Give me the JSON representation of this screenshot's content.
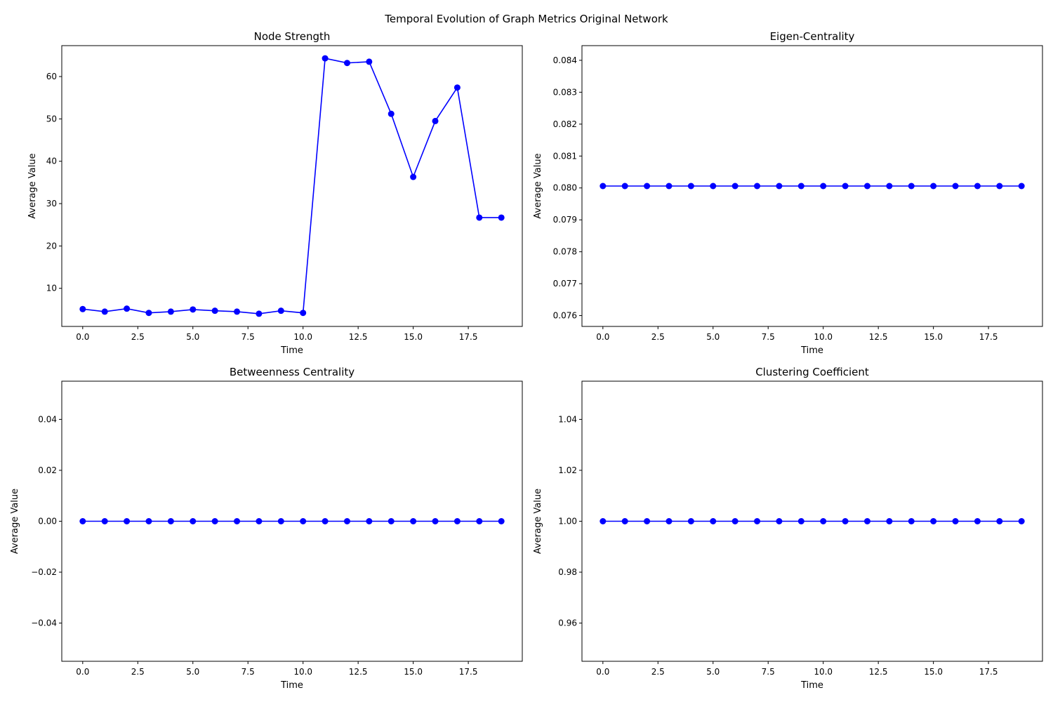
{
  "figure": {
    "title": "Temporal Evolution of Graph Metrics Original Network"
  },
  "chart_data": [
    {
      "type": "line",
      "title": "Node Strength",
      "xlabel": "Time",
      "ylabel": "Average Value",
      "x": [
        0,
        1,
        2,
        3,
        4,
        5,
        6,
        7,
        8,
        9,
        10,
        11,
        12,
        13,
        14,
        15,
        16,
        17,
        18,
        19
      ],
      "series": [
        {
          "values": [
            5.1,
            4.5,
            5.2,
            4.2,
            4.5,
            5.0,
            4.7,
            4.5,
            4.0,
            4.7,
            4.2,
            64.3,
            63.2,
            63.5,
            51.2,
            36.3,
            49.5,
            57.4,
            26.7,
            26.7
          ],
          "color": "#0000ff",
          "marker": "circle"
        }
      ],
      "xlim": [
        -0.95,
        19.95
      ],
      "ylim": [
        1.0,
        67.3
      ],
      "xticks": [
        0.0,
        2.5,
        5.0,
        7.5,
        10.0,
        12.5,
        15.0,
        17.5
      ],
      "xtick_labels": [
        "0.0",
        "2.5",
        "5.0",
        "7.5",
        "10.0",
        "12.5",
        "15.0",
        "17.5"
      ],
      "yticks": [
        10,
        20,
        30,
        40,
        50,
        60
      ],
      "ytick_labels": [
        "10",
        "20",
        "30",
        "40",
        "50",
        "60"
      ],
      "grid": false
    },
    {
      "type": "line",
      "title": "Eigen-Centrality",
      "xlabel": "Time",
      "ylabel": "Average Value",
      "x": [
        0,
        1,
        2,
        3,
        4,
        5,
        6,
        7,
        8,
        9,
        10,
        11,
        12,
        13,
        14,
        15,
        16,
        17,
        18,
        19
      ],
      "series": [
        {
          "values": [
            0.08006,
            0.08006,
            0.08006,
            0.08006,
            0.08006,
            0.08006,
            0.08006,
            0.08006,
            0.08006,
            0.08006,
            0.08006,
            0.08006,
            0.08006,
            0.08006,
            0.08006,
            0.08006,
            0.08006,
            0.08006,
            0.08006,
            0.08006
          ],
          "color": "#0000ff",
          "marker": "circle"
        }
      ],
      "xlim": [
        -0.95,
        19.95
      ],
      "ylim": [
        0.07566,
        0.08446
      ],
      "xticks": [
        0.0,
        2.5,
        5.0,
        7.5,
        10.0,
        12.5,
        15.0,
        17.5
      ],
      "xtick_labels": [
        "0.0",
        "2.5",
        "5.0",
        "7.5",
        "10.0",
        "12.5",
        "15.0",
        "17.5"
      ],
      "yticks": [
        0.076,
        0.077,
        0.078,
        0.079,
        0.08,
        0.081,
        0.082,
        0.083,
        0.084
      ],
      "ytick_labels": [
        "0.076",
        "0.077",
        "0.078",
        "0.079",
        "0.080",
        "0.081",
        "0.082",
        "0.083",
        "0.084"
      ],
      "grid": false
    },
    {
      "type": "line",
      "title": "Betweenness Centrality",
      "xlabel": "Time",
      "ylabel": "Average Value",
      "x": [
        0,
        1,
        2,
        3,
        4,
        5,
        6,
        7,
        8,
        9,
        10,
        11,
        12,
        13,
        14,
        15,
        16,
        17,
        18,
        19
      ],
      "series": [
        {
          "values": [
            0,
            0,
            0,
            0,
            0,
            0,
            0,
            0,
            0,
            0,
            0,
            0,
            0,
            0,
            0,
            0,
            0,
            0,
            0,
            0
          ],
          "color": "#0000ff",
          "marker": "circle"
        }
      ],
      "xlim": [
        -0.95,
        19.95
      ],
      "ylim": [
        -0.055,
        0.055
      ],
      "xticks": [
        0.0,
        2.5,
        5.0,
        7.5,
        10.0,
        12.5,
        15.0,
        17.5
      ],
      "xtick_labels": [
        "0.0",
        "2.5",
        "5.0",
        "7.5",
        "10.0",
        "12.5",
        "15.0",
        "17.5"
      ],
      "yticks": [
        -0.04,
        -0.02,
        0.0,
        0.02,
        0.04
      ],
      "ytick_labels": [
        "−0.04",
        "−0.02",
        "0.00",
        "0.02",
        "0.04"
      ],
      "grid": false
    },
    {
      "type": "line",
      "title": "Clustering Coefficient",
      "xlabel": "Time",
      "ylabel": "Average Value",
      "x": [
        0,
        1,
        2,
        3,
        4,
        5,
        6,
        7,
        8,
        9,
        10,
        11,
        12,
        13,
        14,
        15,
        16,
        17,
        18,
        19
      ],
      "series": [
        {
          "values": [
            1,
            1,
            1,
            1,
            1,
            1,
            1,
            1,
            1,
            1,
            1,
            1,
            1,
            1,
            1,
            1,
            1,
            1,
            1,
            1
          ],
          "color": "#0000ff",
          "marker": "circle"
        }
      ],
      "xlim": [
        -0.95,
        19.95
      ],
      "ylim": [
        0.945,
        1.055
      ],
      "xticks": [
        0.0,
        2.5,
        5.0,
        7.5,
        10.0,
        12.5,
        15.0,
        17.5
      ],
      "xtick_labels": [
        "0.0",
        "2.5",
        "5.0",
        "7.5",
        "10.0",
        "12.5",
        "15.0",
        "17.5"
      ],
      "yticks": [
        0.96,
        0.98,
        1.0,
        1.02,
        1.04
      ],
      "ytick_labels": [
        "0.96",
        "0.98",
        "1.00",
        "1.02",
        "1.04"
      ],
      "grid": false
    }
  ]
}
